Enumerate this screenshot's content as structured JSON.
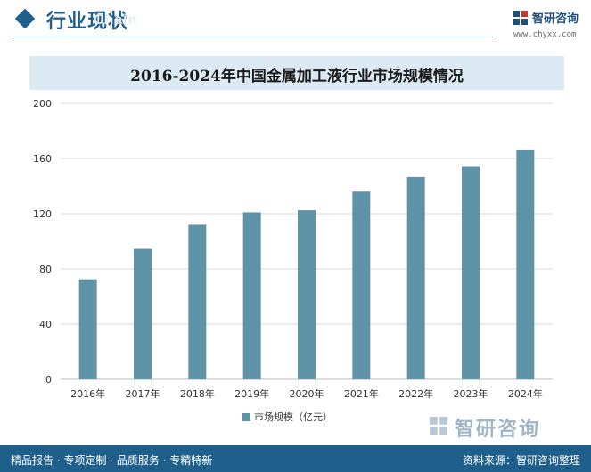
{
  "header": {
    "section_title": "行业现状",
    "ghost_text": "Chain"
  },
  "brand": {
    "name": "智研咨询",
    "site": "www.chyxx.com"
  },
  "chart_data": {
    "type": "bar",
    "title": "2016-2024年中国金属加工液行业市场规模情况",
    "categories": [
      "2016年",
      "2017年",
      "2018年",
      "2019年",
      "2020年",
      "2021年",
      "2022年",
      "2023年",
      "2024年"
    ],
    "series": [
      {
        "name": "市场规模（亿元）",
        "values": [
          72.5,
          94.5,
          112,
          121,
          122.5,
          136,
          146.5,
          154.5,
          166.5
        ]
      }
    ],
    "xlabel": "",
    "ylabel": "",
    "ylim": [
      0,
      200
    ],
    "yticks": [
      0,
      40,
      80,
      120,
      160,
      200
    ],
    "grid": true,
    "legend_position": "bottom-center",
    "bar_color": "#5f93a8"
  },
  "footer": {
    "slogan": "精品报告 · 专项定制 · 品质服务 · 专精特新",
    "source": "资料来源：智研咨询整理"
  },
  "colors": {
    "primary": "#1f5f8b",
    "title_bar": "#dbe9f3",
    "grid": "#d9d9d9"
  }
}
